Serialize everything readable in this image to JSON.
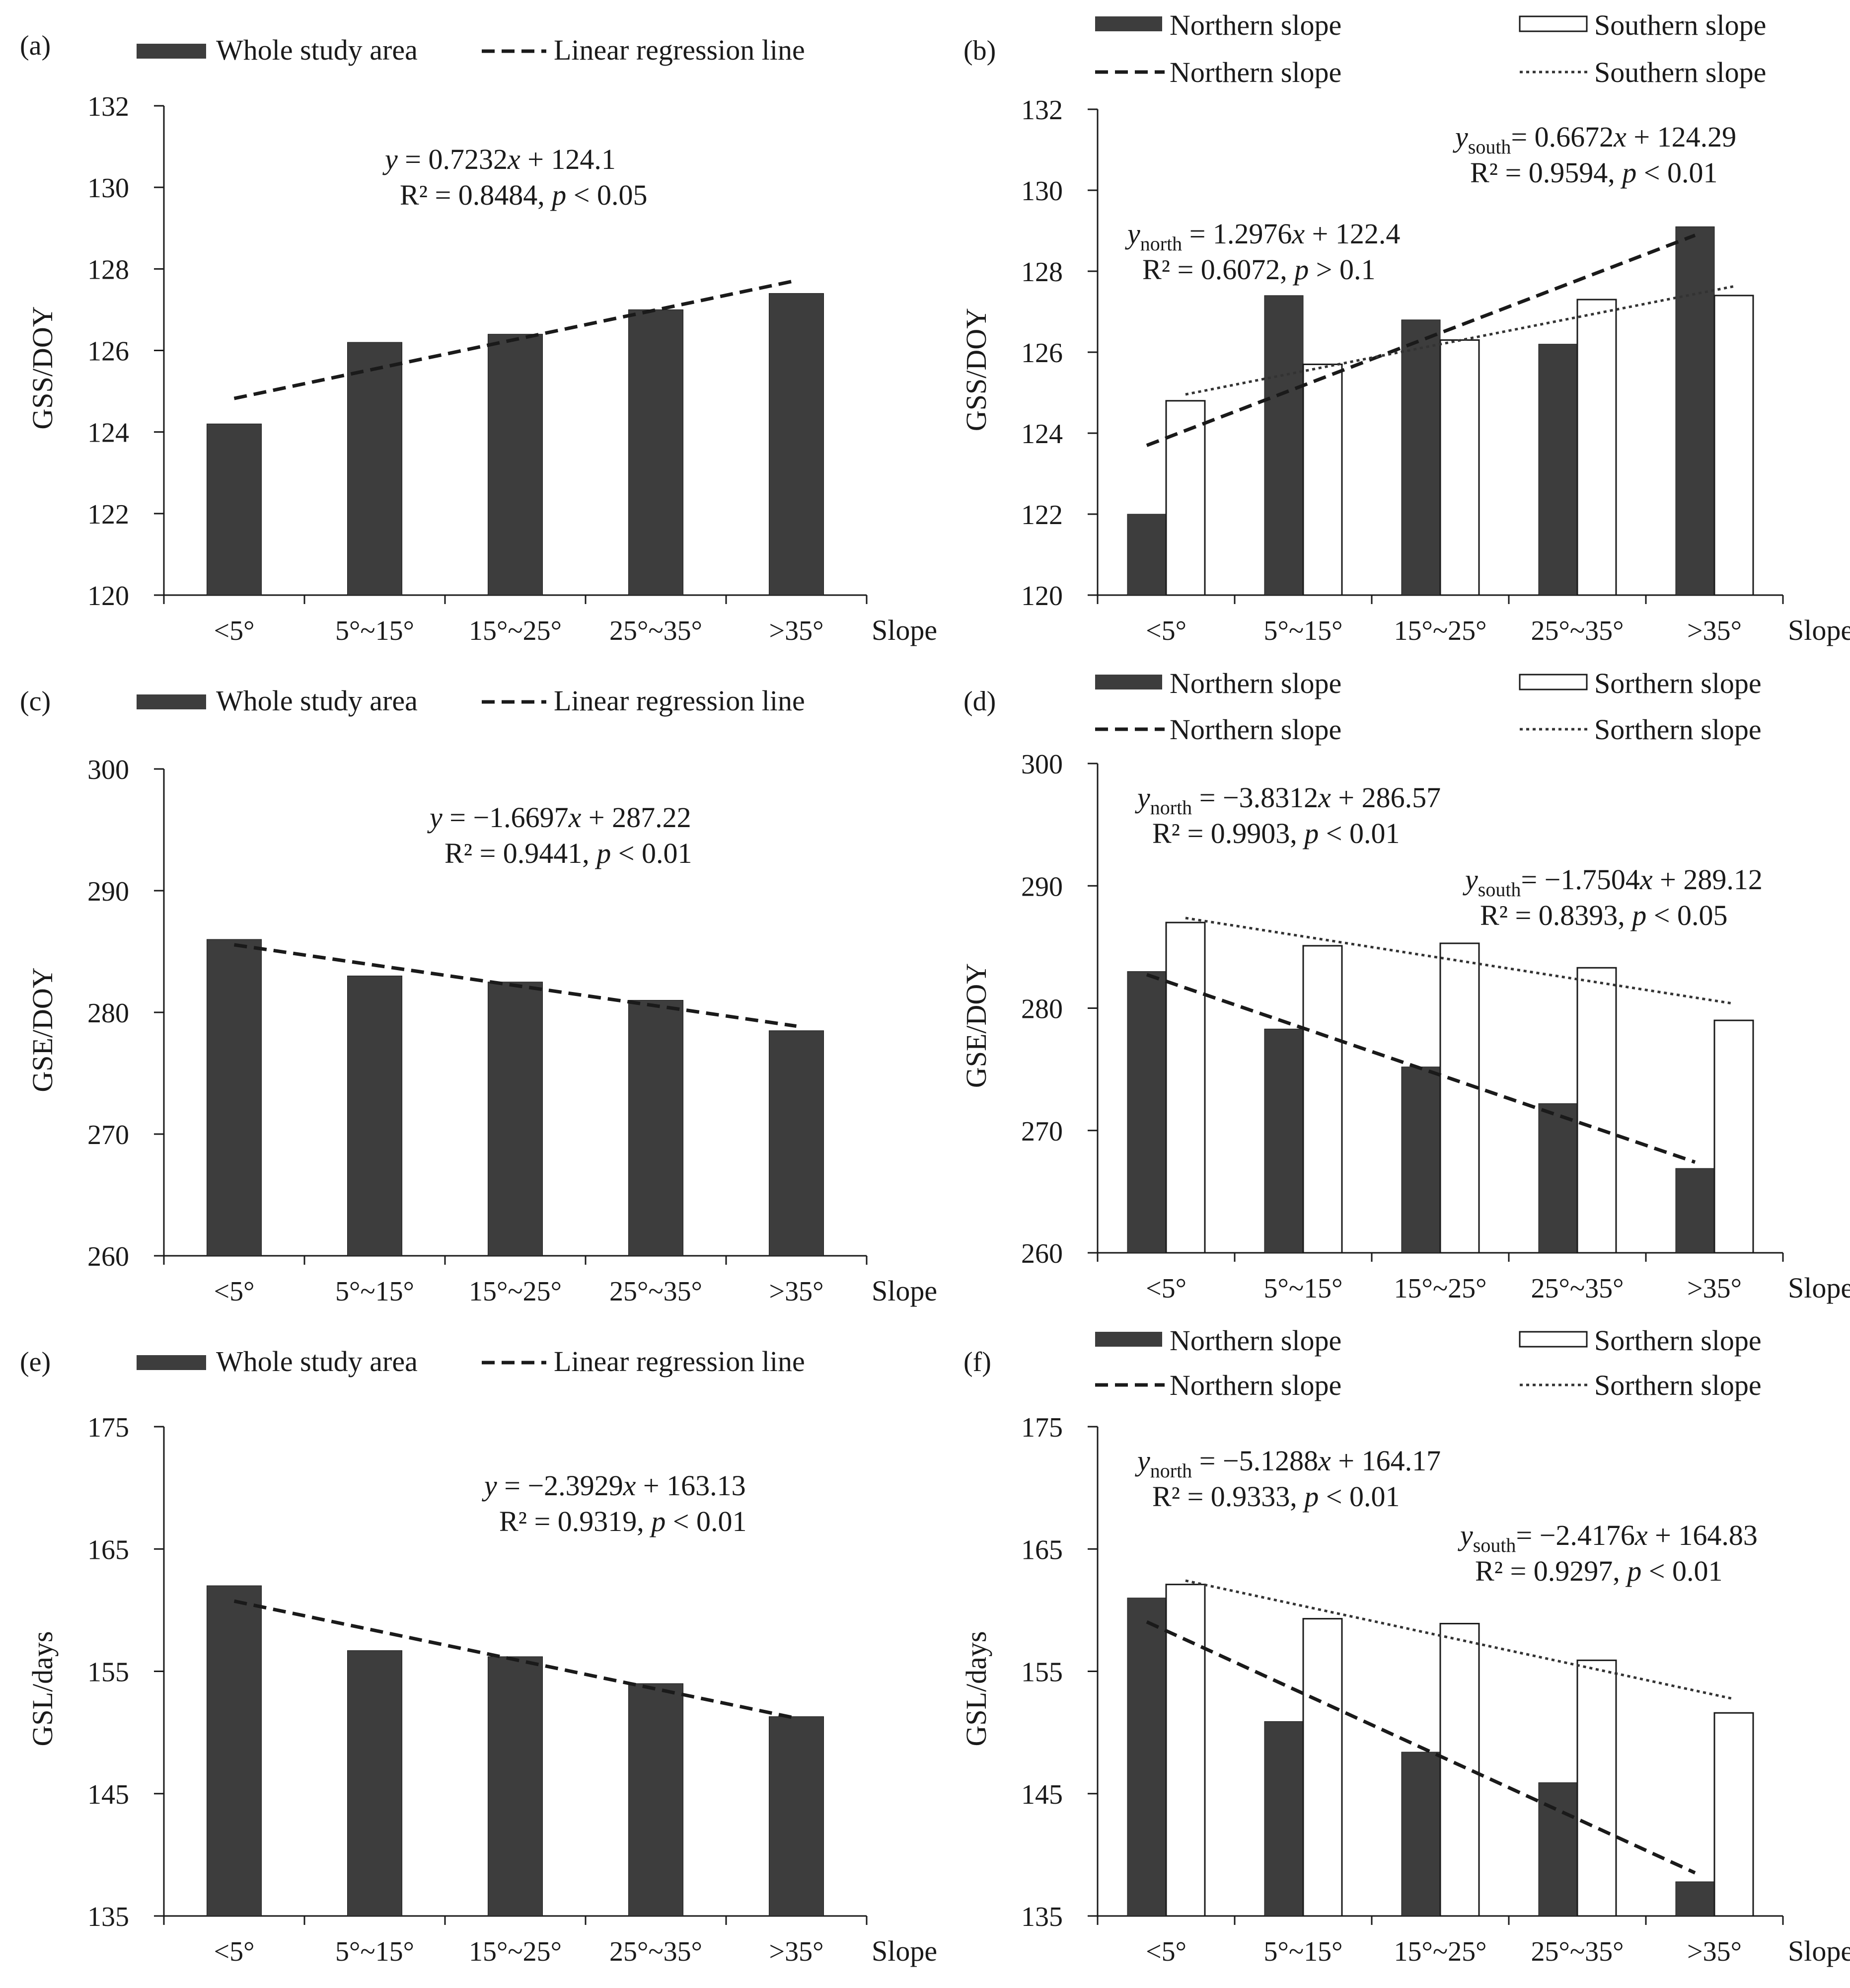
{
  "chart_data": [
    {
      "panel": "(a)",
      "type": "bar",
      "categories": [
        "<5°",
        "5°~15°",
        "15°~25°",
        "25°~35°",
        ">35°"
      ],
      "xlabel": "Slope",
      "ylabel": "GSS/DOY",
      "ylim": [
        120,
        132
      ],
      "yticks": [
        120,
        122,
        124,
        126,
        128,
        130,
        132
      ],
      "series": [
        {
          "name": "Whole study area",
          "style": "bar-dark",
          "color": "#3d3d3d",
          "values": [
            124.2,
            126.2,
            126.4,
            127.0,
            127.4
          ]
        }
      ],
      "regressions": [
        {
          "name": "Linear regression line",
          "style": "dashed",
          "slope": 0.7232,
          "intercept": 124.1,
          "series_index": 0
        }
      ],
      "legend": [
        "Whole study area",
        "Linear regression line"
      ],
      "annotations": [
        {
          "line1": "y = 0.7232x + 124.1",
          "line2": "R² = 0.8484, p < 0.05"
        }
      ]
    },
    {
      "panel": "(b)",
      "type": "bar",
      "categories": [
        "<5°",
        "5°~15°",
        "15°~25°",
        "25°~35°",
        ">35°"
      ],
      "xlabel": "Slope",
      "ylabel": "GSS/DOY",
      "ylim": [
        120,
        132
      ],
      "yticks": [
        120,
        122,
        124,
        126,
        128,
        130,
        132
      ],
      "series": [
        {
          "name": "Northern slope",
          "style": "bar-dark",
          "color": "#3d3d3d",
          "values": [
            122.0,
            127.4,
            126.8,
            126.2,
            129.1
          ]
        },
        {
          "name": "Southern slope",
          "style": "bar-white",
          "color": "#ffffff",
          "values": [
            124.8,
            125.7,
            126.3,
            127.3,
            127.4
          ]
        }
      ],
      "regressions": [
        {
          "name": "Northern slope",
          "style": "dashed",
          "slope": 1.2976,
          "intercept": 122.4,
          "series_index": 0
        },
        {
          "name": "Southern slope",
          "style": "dotted",
          "slope": 0.6672,
          "intercept": 124.29,
          "series_index": 1
        }
      ],
      "legend": [
        "Northern slope",
        "Southern slope",
        "Northern slope",
        "Southern slope"
      ],
      "annotations": [
        {
          "y": "y",
          "sub": "north",
          "rest": " = 1.2976x + 122.4",
          "line2": "R² = 0.6072, p > 0.1"
        },
        {
          "y": "y",
          "sub": "south",
          "rest": "= 0.6672x + 124.29",
          "line2": "R² = 0.9594, p < 0.01"
        }
      ]
    },
    {
      "panel": "(c)",
      "type": "bar",
      "categories": [
        "<5°",
        "5°~15°",
        "15°~25°",
        "25°~35°",
        ">35°"
      ],
      "xlabel": "Slope",
      "ylabel": "GSE/DOY",
      "ylim": [
        260,
        300
      ],
      "yticks": [
        260,
        270,
        280,
        290,
        300
      ],
      "series": [
        {
          "name": "Whole study area",
          "style": "bar-dark",
          "color": "#3d3d3d",
          "values": [
            286.0,
            283.0,
            282.5,
            281.0,
            278.5
          ]
        }
      ],
      "regressions": [
        {
          "name": "Linear regression line",
          "style": "dashed",
          "slope": -1.6697,
          "intercept": 287.22,
          "series_index": 0
        }
      ],
      "legend": [
        "Whole study area",
        "Linear regression line"
      ],
      "annotations": [
        {
          "line1": "y = −1.6697x + 287.22",
          "line2": "R² = 0.9441, p < 0.01"
        }
      ]
    },
    {
      "panel": "(d)",
      "type": "bar",
      "categories": [
        "<5°",
        "5°~15°",
        "15°~25°",
        "25°~35°",
        ">35°"
      ],
      "xlabel": "Slope",
      "ylabel": "GSE/DOY",
      "ylim": [
        260,
        300
      ],
      "yticks": [
        260,
        270,
        280,
        290,
        300
      ],
      "series": [
        {
          "name": "Northern slope",
          "style": "bar-dark",
          "color": "#3d3d3d",
          "values": [
            283.0,
            278.3,
            275.2,
            272.2,
            266.9
          ]
        },
        {
          "name": "Sorthern slope",
          "style": "bar-white",
          "color": "#ffffff",
          "values": [
            287.0,
            285.1,
            285.3,
            283.3,
            279.0
          ]
        }
      ],
      "regressions": [
        {
          "name": "Northern slope",
          "style": "dashed",
          "slope": -3.8312,
          "intercept": 286.57,
          "series_index": 0
        },
        {
          "name": "Sorthern slope",
          "style": "dotted",
          "slope": -1.7504,
          "intercept": 289.12,
          "series_index": 1
        }
      ],
      "legend": [
        "Northern slope",
        "Sorthern slope",
        "Northern slope",
        "Sorthern slope"
      ],
      "annotations": [
        {
          "y": "y",
          "sub": "north",
          "rest": " = −3.8312x + 286.57",
          "line2": "R² = 0.9903, p < 0.01"
        },
        {
          "y": "y",
          "sub": "south",
          "rest": "= −1.7504x + 289.12",
          "line2": "R² = 0.8393, p < 0.05"
        }
      ]
    },
    {
      "panel": "(e)",
      "type": "bar",
      "categories": [
        "<5°",
        "5°~15°",
        "15°~25°",
        "25°~35°",
        ">35°"
      ],
      "xlabel": "Slope",
      "ylabel": "GSL/days",
      "ylim": [
        135,
        175
      ],
      "yticks": [
        135,
        145,
        155,
        165,
        175
      ],
      "series": [
        {
          "name": "Whole study area",
          "style": "bar-dark",
          "color": "#3d3d3d",
          "values": [
            162.0,
            156.7,
            156.2,
            154.0,
            151.3
          ]
        }
      ],
      "regressions": [
        {
          "name": "Linear regression line",
          "style": "dashed",
          "slope": -2.3929,
          "intercept": 163.13,
          "series_index": 0
        }
      ],
      "legend": [
        "Whole study area",
        "Linear regression line"
      ],
      "annotations": [
        {
          "line1": "y = −2.3929x + 163.13",
          "line2": "R² = 0.9319, p < 0.01"
        }
      ]
    },
    {
      "panel": "(f)",
      "type": "bar",
      "categories": [
        "<5°",
        "5°~15°",
        "15°~25°",
        "25°~35°",
        ">35°"
      ],
      "xlabel": "Slope",
      "ylabel": "GSL/days",
      "ylim": [
        135,
        175
      ],
      "yticks": [
        135,
        145,
        155,
        165,
        175
      ],
      "series": [
        {
          "name": "Northern slope",
          "style": "bar-dark",
          "color": "#3d3d3d",
          "values": [
            161.0,
            150.9,
            148.4,
            145.9,
            137.8
          ]
        },
        {
          "name": "Sorthern slope",
          "style": "bar-white",
          "color": "#ffffff",
          "values": [
            162.1,
            159.3,
            158.9,
            155.9,
            151.6
          ]
        }
      ],
      "regressions": [
        {
          "name": "Northern slope",
          "style": "dashed",
          "slope": -5.1288,
          "intercept": 164.17,
          "series_index": 0
        },
        {
          "name": "Sorthern slope",
          "style": "dotted",
          "slope": -2.4176,
          "intercept": 164.83,
          "series_index": 1
        }
      ],
      "legend": [
        "Northern slope",
        "Sorthern slope",
        "Northern slope",
        "Sorthern slope"
      ],
      "annotations": [
        {
          "y": "y",
          "sub": "north",
          "rest": " = −5.1288x + 164.17",
          "line2": "R² = 0.9333, p < 0.01"
        },
        {
          "y": "y",
          "sub": "south",
          "rest": "= −2.4176x + 164.83",
          "line2": "R² = 0.9297, p < 0.01"
        }
      ]
    }
  ]
}
